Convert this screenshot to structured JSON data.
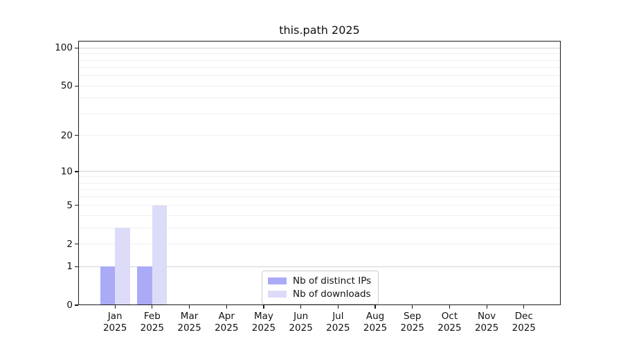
{
  "chart_data": {
    "type": "bar",
    "title": "this.path 2025",
    "months": [
      "Jan",
      "Feb",
      "Mar",
      "Apr",
      "May",
      "Jun",
      "Jul",
      "Aug",
      "Sep",
      "Oct",
      "Nov",
      "Dec"
    ],
    "year": "2025",
    "series": [
      {
        "name": "Nb of distinct IPs",
        "color": "#aaaaf7",
        "values": [
          1,
          1,
          0,
          0,
          0,
          0,
          0,
          0,
          0,
          0,
          0,
          0
        ]
      },
      {
        "name": "Nb of downloads",
        "color": "#dcdcf8",
        "values": [
          3,
          5,
          0,
          0,
          0,
          0,
          0,
          0,
          0,
          0,
          0,
          0
        ]
      }
    ],
    "yticks": [
      0,
      1,
      2,
      5,
      10,
      20,
      50,
      100
    ],
    "ylim": [
      0,
      100
    ],
    "scale": "log10(1+x)",
    "grid": {
      "orientation": "horizontal",
      "major_lines": [
        1,
        10,
        100
      ],
      "minor_lines": [
        2,
        3,
        4,
        5,
        6,
        7,
        8,
        9,
        20,
        30,
        40,
        50,
        60,
        70,
        80,
        90
      ],
      "major_color": "#d2d2d2",
      "minor_color": "#f0f0f0"
    },
    "legend_position": "bottom-center",
    "colors": {
      "axis": "#1a1a1a",
      "text": "#111111",
      "background": "#ffffff"
    }
  }
}
